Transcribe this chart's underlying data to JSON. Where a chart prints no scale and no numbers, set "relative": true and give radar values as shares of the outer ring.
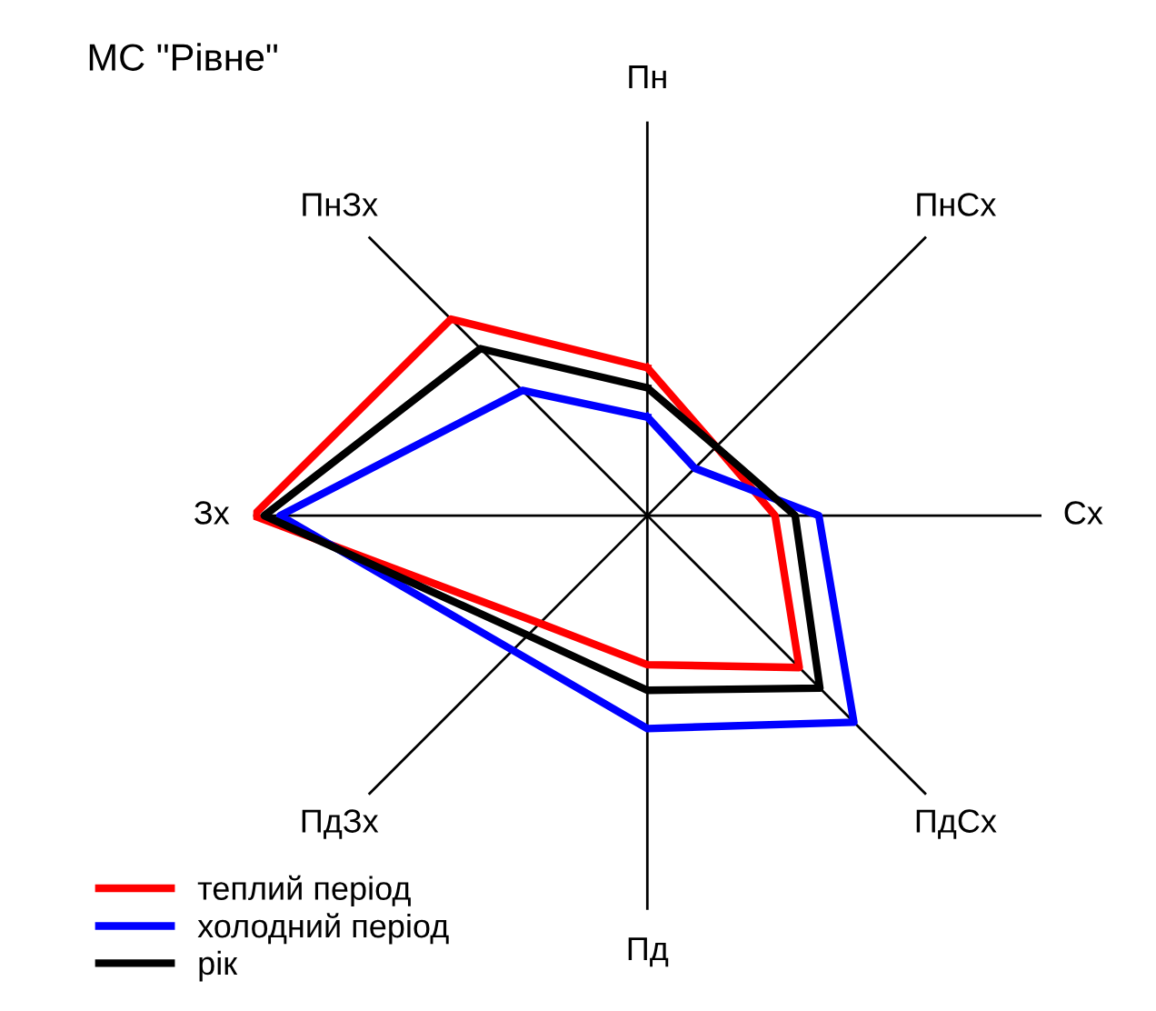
{
  "chart_data": {
    "type": "radar",
    "title": "МС \"Рівне\"",
    "relative": true,
    "categories": [
      "Пн",
      "ПнСх",
      "Сх",
      "ПдСх",
      "Пд",
      "ПдЗх",
      "Зх",
      "ПнЗх"
    ],
    "series": [
      {
        "name": "теплий період",
        "color": "#ff0000",
        "values": [
          0.375,
          0.247,
          0.324,
          0.545,
          0.378,
          0.386,
          1.0,
          0.705
        ]
      },
      {
        "name": "холодний період",
        "color": "#0000ff",
        "values": [
          0.25,
          0.17,
          0.435,
          0.741,
          0.54,
          0.483,
          0.932,
          0.449
        ]
      },
      {
        "name": "рік",
        "color": "#000000",
        "values": [
          0.324,
          0.247,
          0.375,
          0.619,
          0.443,
          0.429,
          0.972,
          0.599
        ]
      }
    ],
    "legend": "bottom left",
    "grid": true,
    "marker": "none",
    "line_style": "solid"
  }
}
